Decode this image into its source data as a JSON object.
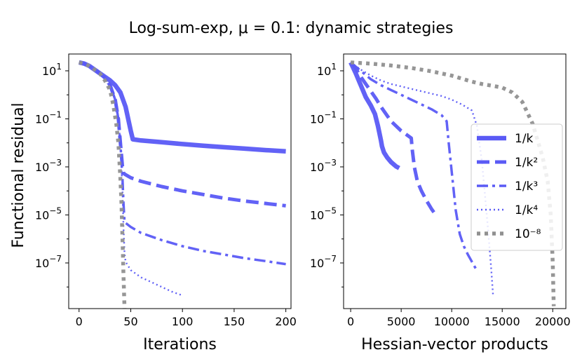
{
  "chart_data": {
    "title": "Log-sum-exp, μ = 0.1: dynamic strategies",
    "ylabel": "Functional residual",
    "yscale": "log",
    "legend": {
      "placement": "right of right subplot",
      "entries": [
        {
          "label": "1/k",
          "series": "inv_k"
        },
        {
          "label": "1/k²",
          "series": "inv_k2"
        },
        {
          "label": "1/k³",
          "series": "inv_k3"
        },
        {
          "label": "1/k⁴",
          "series": "inv_k4"
        },
        {
          "label": "10⁻⁸",
          "series": "eps"
        }
      ]
    },
    "series_styles": {
      "inv_k": {
        "color": "#5a5af5",
        "dash": "solid"
      },
      "inv_k2": {
        "color": "#5a5af5",
        "dash": "dashed"
      },
      "inv_k3": {
        "color": "#5a5af5",
        "dash": "dashdot"
      },
      "inv_k4": {
        "color": "#5a5af5",
        "dash": "dotted"
      },
      "eps": {
        "color": "#909090",
        "dash": "dotted"
      }
    },
    "subplots": [
      {
        "type": "line",
        "xlabel": "Iterations",
        "xlim": [
          -10,
          205
        ],
        "ylim_log10": [
          -8.9,
          1.7
        ],
        "xticks": [
          0,
          50,
          100,
          150,
          200
        ],
        "xtick_labels": [
          "0",
          "50",
          "100",
          "150",
          "200"
        ],
        "yticks_log10": [
          1,
          -1,
          -3,
          -5,
          -7
        ],
        "ytick_labels": [
          {
            "base": "10",
            "exp": "1"
          },
          {
            "base": "10",
            "exp": "−1"
          },
          {
            "base": "10",
            "exp": "−3"
          },
          {
            "base": "10",
            "exp": "−5"
          },
          {
            "base": "10",
            "exp": "−7"
          }
        ],
        "series": [
          {
            "key": "inv_k",
            "x": [
              0,
              5,
              10,
              15,
              20,
              25,
              30,
              35,
              40,
              45,
              50,
              52,
              60,
              80,
              100,
              120,
              140,
              160,
              180,
              200
            ],
            "log10y": [
              1.35,
              1.3,
              1.2,
              1.05,
              0.9,
              0.75,
              0.6,
              0.4,
              0.1,
              -0.5,
              -1.5,
              -1.85,
              -1.9,
              -1.97,
              -2.05,
              -2.12,
              -2.18,
              -2.24,
              -2.3,
              -2.35
            ]
          },
          {
            "key": "inv_k2",
            "x": [
              0,
              5,
              10,
              15,
              20,
              25,
              30,
              35,
              38,
              40,
              42,
              43,
              44,
              50,
              60,
              80,
              100,
              120,
              140,
              160,
              180,
              200
            ],
            "log10y": [
              1.35,
              1.3,
              1.2,
              1.05,
              0.9,
              0.7,
              0.4,
              -0.2,
              -1.0,
              -2.0,
              -3.0,
              -3.25,
              -3.3,
              -3.45,
              -3.6,
              -3.82,
              -4.0,
              -4.15,
              -4.3,
              -4.42,
              -4.52,
              -4.62
            ]
          },
          {
            "key": "inv_k3",
            "x": [
              0,
              5,
              10,
              15,
              20,
              25,
              30,
              35,
              38,
              40,
              42,
              43,
              44,
              50,
              60,
              80,
              100,
              120,
              140,
              160,
              180,
              200
            ],
            "log10y": [
              1.35,
              1.3,
              1.2,
              1.05,
              0.9,
              0.7,
              0.4,
              -0.2,
              -1.0,
              -2.0,
              -3.5,
              -4.5,
              -5.3,
              -5.5,
              -5.75,
              -6.05,
              -6.3,
              -6.5,
              -6.65,
              -6.8,
              -6.92,
              -7.05
            ]
          },
          {
            "key": "inv_k4",
            "x": [
              0,
              5,
              10,
              15,
              20,
              25,
              30,
              35,
              38,
              40,
              42,
              43,
              44,
              45,
              50,
              60,
              70,
              80,
              90,
              100
            ],
            "log10y": [
              1.35,
              1.3,
              1.2,
              1.05,
              0.9,
              0.7,
              0.4,
              -0.2,
              -1.0,
              -2.0,
              -4.0,
              -5.5,
              -6.6,
              -6.95,
              -7.3,
              -7.6,
              -7.8,
              -8.0,
              -8.2,
              -8.35
            ]
          },
          {
            "key": "eps",
            "x": [
              0,
              5,
              10,
              15,
              20,
              25,
              30,
              33,
              36,
              38,
              40,
              41,
              42,
              43,
              44
            ],
            "log10y": [
              1.35,
              1.3,
              1.2,
              1.05,
              0.9,
              0.6,
              0.2,
              -0.4,
              -1.2,
              -2.0,
              -3.5,
              -4.5,
              -6.0,
              -7.5,
              -8.9
            ]
          }
        ]
      },
      {
        "type": "line",
        "xlabel": "Hessian-vector products",
        "xlim": [
          -700,
          21300
        ],
        "ylim_log10": [
          -8.9,
          1.7
        ],
        "xticks": [
          0,
          5000,
          10000,
          15000,
          20000
        ],
        "xtick_labels": [
          "0",
          "5000",
          "10000",
          "15000",
          "20000"
        ],
        "yticks_log10": [
          1,
          -1,
          -3,
          -5,
          -7
        ],
        "ytick_labels": [
          {
            "base": "10",
            "exp": "1"
          },
          {
            "base": "10",
            "exp": "−1"
          },
          {
            "base": "10",
            "exp": "−3"
          },
          {
            "base": "10",
            "exp": "−5"
          },
          {
            "base": "10",
            "exp": "−7"
          }
        ],
        "series": [
          {
            "key": "inv_k",
            "x": [
              0,
              500,
              1000,
              1500,
              2000,
              2400,
              2700,
              3000,
              3100,
              3300,
              3600,
              4000,
              4500,
              4800
            ],
            "log10y": [
              1.35,
              0.9,
              0.4,
              -0.1,
              -0.45,
              -0.8,
              -1.3,
              -1.9,
              -2.15,
              -2.4,
              -2.6,
              -2.8,
              -2.98,
              -3.05
            ]
          },
          {
            "key": "inv_k2",
            "x": [
              0,
              500,
              1000,
              1500,
              2000,
              2500,
              3000,
              3500,
              4000,
              4500,
              5000,
              5500,
              6000,
              6100,
              6300,
              6600,
              7000,
              7500,
              8000,
              8500
            ],
            "log10y": [
              1.35,
              1.1,
              0.75,
              0.45,
              0.15,
              -0.15,
              -0.5,
              -0.8,
              -1.1,
              -1.3,
              -1.5,
              -1.65,
              -1.8,
              -2.3,
              -3.0,
              -3.6,
              -4.0,
              -4.4,
              -4.75,
              -5.05
            ]
          },
          {
            "key": "inv_k3",
            "x": [
              0,
              1000,
              2000,
              3000,
              4000,
              5000,
              6000,
              7000,
              8000,
              9000,
              9500,
              9700,
              10000,
              10400,
              10800,
              11200,
              11600,
              12000,
              12400
            ],
            "log10y": [
              1.35,
              1.0,
              0.65,
              0.4,
              0.2,
              0.0,
              -0.2,
              -0.4,
              -0.6,
              -0.85,
              -1.1,
              -2.0,
              -3.2,
              -4.8,
              -5.8,
              -6.3,
              -6.65,
              -6.95,
              -7.25
            ]
          },
          {
            "key": "inv_k4",
            "x": [
              0,
              1000,
              2000,
              3000,
              4000,
              5000,
              6000,
              7000,
              8000,
              9000,
              10000,
              11000,
              12000,
              12500,
              13000,
              13300,
              13600,
              13900,
              14100
            ],
            "log10y": [
              1.35,
              1.05,
              0.8,
              0.6,
              0.45,
              0.35,
              0.25,
              0.15,
              0.05,
              -0.05,
              -0.2,
              -0.4,
              -0.65,
              -1.3,
              -2.8,
              -4.2,
              -5.6,
              -7.2,
              -8.4
            ]
          },
          {
            "key": "eps",
            "x": [
              0,
              2000,
              4000,
              6000,
              8000,
              10000,
              12000,
              13000,
              14000,
              15000,
              16000,
              17000,
              18000,
              19000,
              19500,
              19800,
              20000,
              20100
            ],
            "log10y": [
              1.35,
              1.3,
              1.22,
              1.12,
              0.98,
              0.8,
              0.55,
              0.45,
              0.38,
              0.3,
              0.1,
              -0.3,
              -1.2,
              -2.6,
              -3.6,
              -5.0,
              -7.0,
              -8.8
            ]
          }
        ]
      }
    ]
  }
}
